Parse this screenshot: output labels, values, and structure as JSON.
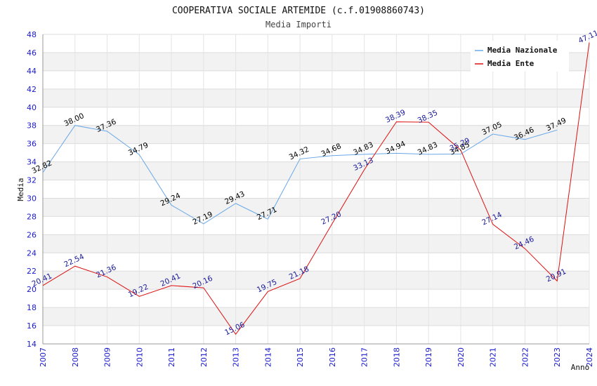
{
  "chart_data": {
    "type": "line",
    "title": "COOPERATIVA SOCIALE ARTEMIDE (c.f.01908860743)",
    "subtitle": "Media Importi",
    "xlabel": "Anno",
    "ylabel": "Media",
    "ylim": [
      14,
      48
    ],
    "ytick_step": 2,
    "grid": true,
    "legend_position": "top-right",
    "x": [
      "2007",
      "2008",
      "2009",
      "2010",
      "2011",
      "2012",
      "2013",
      "2014",
      "2015",
      "2016",
      "2017",
      "2018",
      "2019",
      "2020",
      "2021",
      "2022",
      "2023",
      "2024"
    ],
    "series": [
      {
        "name": "Media Nazionale",
        "color": "#6aa8e8",
        "values": [
          32.82,
          38.0,
          37.36,
          34.79,
          29.24,
          27.19,
          29.43,
          27.71,
          34.32,
          34.68,
          34.83,
          34.94,
          34.83,
          34.85,
          37.05,
          36.46,
          37.49,
          null
        ],
        "labels": [
          "32.82",
          "38.00",
          "37.36",
          "34.79",
          "29.24",
          "27.19",
          "29.43",
          "27.71",
          "34.32",
          "34.68",
          "34.83",
          "34.94",
          "34.83",
          "34.85",
          "37.05",
          "36.46",
          "37.49",
          null
        ]
      },
      {
        "name": "Media Ente",
        "color": "#dd1111",
        "values": [
          20.41,
          22.54,
          21.36,
          19.22,
          20.41,
          20.16,
          15.06,
          19.75,
          21.18,
          27.2,
          33.13,
          38.39,
          38.35,
          35.29,
          27.14,
          24.46,
          20.91,
          47.11
        ],
        "labels": [
          "20.41",
          "22.54",
          "21.36",
          "19.22",
          "20.41",
          "20.16",
          "15.06",
          "19.75",
          "21.18",
          "27.20",
          "33.13",
          "38.39",
          "38.35",
          "35.29",
          "27.14",
          "24.46",
          "20.91",
          "47.11"
        ]
      }
    ]
  }
}
